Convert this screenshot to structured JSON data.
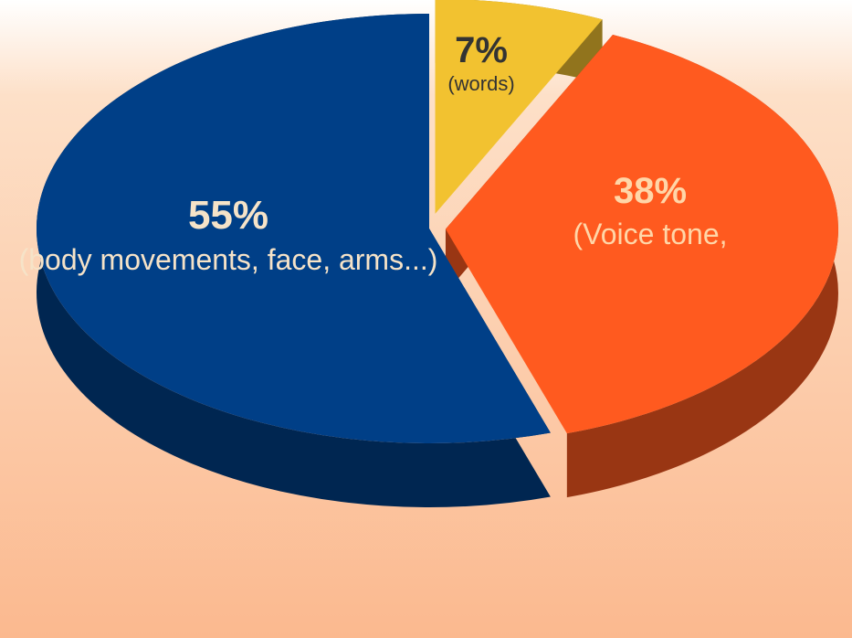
{
  "chart_data": {
    "type": "pie",
    "title": "",
    "slices": [
      {
        "label": "(body movements, face, arms...)",
        "value": 55,
        "value_label": "55%",
        "color": "#003f87"
      },
      {
        "label": "(words)",
        "value": 7,
        "value_label": "7%",
        "color": "#f2c230"
      },
      {
        "label": "(Voice tone,",
        "value": 38,
        "value_label": "38%",
        "color": "#ff5a1f"
      }
    ],
    "three_d": true,
    "exploded": true
  }
}
